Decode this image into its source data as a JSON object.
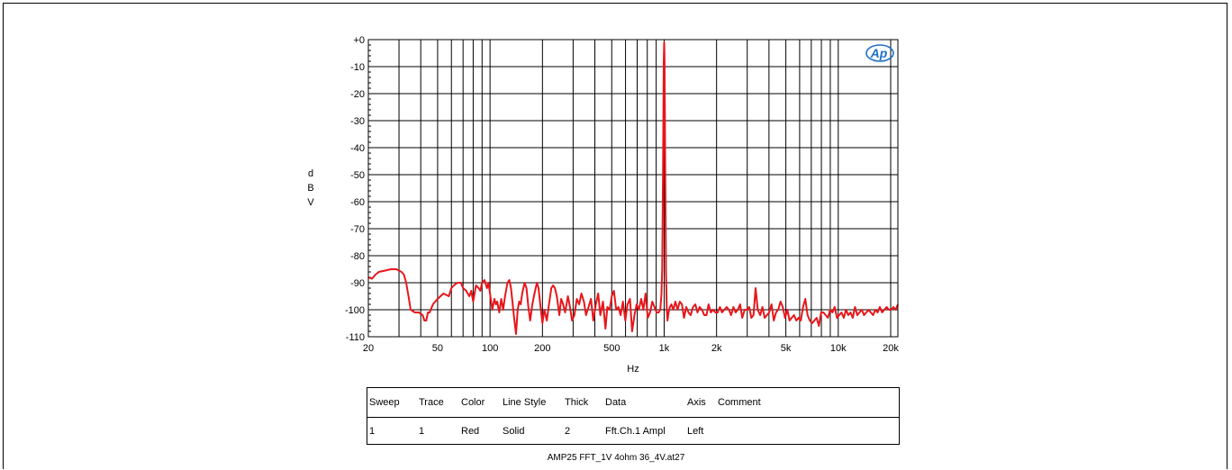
{
  "chart_data": {
    "type": "line",
    "ylabel": "dBV",
    "xlabel": "Hz",
    "x_scale": "log",
    "xlim": [
      20,
      22000
    ],
    "ylim": [
      -110,
      0
    ],
    "grid": true,
    "y_ticks": [
      "+0",
      "-10",
      "-20",
      "-30",
      "-40",
      "-50",
      "-60",
      "-70",
      "-80",
      "-90",
      "-100",
      "-110"
    ],
    "x_ticks": [
      {
        "value": 20,
        "label": "20"
      },
      {
        "value": 50,
        "label": "50"
      },
      {
        "value": 100,
        "label": "100"
      },
      {
        "value": 200,
        "label": "200"
      },
      {
        "value": 500,
        "label": "500"
      },
      {
        "value": 1000,
        "label": "1k"
      },
      {
        "value": 2000,
        "label": "2k"
      },
      {
        "value": 5000,
        "label": "5k"
      },
      {
        "value": 10000,
        "label": "10k"
      },
      {
        "value": 20000,
        "label": "20k"
      }
    ],
    "series": [
      {
        "color": "#e8161b",
        "points": [
          [
            20,
            -88
          ],
          [
            21,
            -88.5
          ],
          [
            22,
            -87
          ],
          [
            23,
            -86
          ],
          [
            25,
            -85.5
          ],
          [
            27,
            -85
          ],
          [
            29,
            -85
          ],
          [
            31,
            -86
          ],
          [
            32,
            -87
          ],
          [
            33,
            -90
          ],
          [
            34,
            -95
          ],
          [
            35,
            -100
          ],
          [
            37,
            -101
          ],
          [
            39,
            -101
          ],
          [
            41,
            -102
          ],
          [
            42,
            -104
          ],
          [
            43,
            -104
          ],
          [
            44,
            -101
          ],
          [
            45,
            -101
          ],
          [
            47,
            -98
          ],
          [
            50,
            -96
          ],
          [
            54,
            -94
          ],
          [
            58,
            -95
          ],
          [
            60,
            -92
          ],
          [
            62,
            -91
          ],
          [
            65,
            -90
          ],
          [
            68,
            -90
          ],
          [
            70,
            -92
          ],
          [
            73,
            -93
          ],
          [
            76,
            -95
          ],
          [
            78,
            -93
          ],
          [
            80,
            -97
          ],
          [
            83,
            -91
          ],
          [
            86,
            -92
          ],
          [
            88,
            -93
          ],
          [
            90,
            -90
          ],
          [
            93,
            -89
          ],
          [
            96,
            -92
          ],
          [
            98,
            -90
          ],
          [
            100,
            -94
          ],
          [
            103,
            -100
          ],
          [
            106,
            -96
          ],
          [
            108,
            -98
          ],
          [
            110,
            -97
          ],
          [
            113,
            -101
          ],
          [
            116,
            -96
          ],
          [
            119,
            -100
          ],
          [
            122,
            -95
          ],
          [
            126,
            -90
          ],
          [
            129,
            -89
          ],
          [
            132,
            -92
          ],
          [
            135,
            -98
          ],
          [
            138,
            -104
          ],
          [
            141,
            -109
          ],
          [
            144,
            -100
          ],
          [
            147,
            -97
          ],
          [
            150,
            -98
          ],
          [
            153,
            -94
          ],
          [
            158,
            -90
          ],
          [
            162,
            -92
          ],
          [
            166,
            -99
          ],
          [
            170,
            -104
          ],
          [
            175,
            -98
          ],
          [
            180,
            -94
          ],
          [
            186,
            -90
          ],
          [
            190,
            -92
          ],
          [
            195,
            -99
          ],
          [
            200,
            -105
          ],
          [
            205,
            -100
          ],
          [
            212,
            -104
          ],
          [
            218,
            -98
          ],
          [
            225,
            -92
          ],
          [
            230,
            -91
          ],
          [
            236,
            -92
          ],
          [
            242,
            -95
          ],
          [
            250,
            -102
          ],
          [
            256,
            -96
          ],
          [
            263,
            -98
          ],
          [
            270,
            -101
          ],
          [
            280,
            -95
          ],
          [
            288,
            -99
          ],
          [
            296,
            -104
          ],
          [
            305,
            -102
          ],
          [
            315,
            -96
          ],
          [
            325,
            -98
          ],
          [
            335,
            -94
          ],
          [
            346,
            -97
          ],
          [
            356,
            -102
          ],
          [
            368,
            -99
          ],
          [
            380,
            -96
          ],
          [
            392,
            -104
          ],
          [
            405,
            -98
          ],
          [
            418,
            -94
          ],
          [
            430,
            -102
          ],
          [
            445,
            -97
          ],
          [
            460,
            -107
          ],
          [
            472,
            -99
          ],
          [
            486,
            -100
          ],
          [
            500,
            -95
          ],
          [
            515,
            -93
          ],
          [
            530,
            -100
          ],
          [
            546,
            -99
          ],
          [
            562,
            -102
          ],
          [
            580,
            -97
          ],
          [
            598,
            -104
          ],
          [
            616,
            -98
          ],
          [
            636,
            -96
          ],
          [
            655,
            -108
          ],
          [
            675,
            -102
          ],
          [
            695,
            -98
          ],
          [
            716,
            -100
          ],
          [
            738,
            -96
          ],
          [
            760,
            -100
          ],
          [
            782,
            -94
          ],
          [
            805,
            -103
          ],
          [
            830,
            -101
          ],
          [
            855,
            -97
          ],
          [
            880,
            -99
          ],
          [
            905,
            -101
          ],
          [
            930,
            -101
          ],
          [
            950,
            -100
          ],
          [
            965,
            -94
          ],
          [
            975,
            -85
          ],
          [
            985,
            -50
          ],
          [
            995,
            -8
          ],
          [
            1000,
            -1
          ],
          [
            1005,
            -8
          ],
          [
            1015,
            -50
          ],
          [
            1025,
            -86
          ],
          [
            1035,
            -100
          ],
          [
            1045,
            -104
          ],
          [
            1060,
            -101
          ],
          [
            1080,
            -99
          ],
          [
            1100,
            -98
          ],
          [
            1130,
            -100
          ],
          [
            1160,
            -97
          ],
          [
            1195,
            -100
          ],
          [
            1230,
            -97
          ],
          [
            1265,
            -98
          ],
          [
            1300,
            -103
          ],
          [
            1340,
            -99
          ],
          [
            1380,
            -101
          ],
          [
            1420,
            -102
          ],
          [
            1465,
            -99
          ],
          [
            1510,
            -98
          ],
          [
            1555,
            -101
          ],
          [
            1600,
            -99
          ],
          [
            1650,
            -100
          ],
          [
            1700,
            -102
          ],
          [
            1750,
            -102
          ],
          [
            1800,
            -98
          ],
          [
            1855,
            -101
          ],
          [
            1910,
            -100
          ],
          [
            1970,
            -101
          ],
          [
            2030,
            -101
          ],
          [
            2090,
            -99
          ],
          [
            2150,
            -101
          ],
          [
            2215,
            -100
          ],
          [
            2285,
            -99
          ],
          [
            2355,
            -100
          ],
          [
            2425,
            -102
          ],
          [
            2500,
            -99
          ],
          [
            2575,
            -101
          ],
          [
            2650,
            -100
          ],
          [
            2730,
            -98
          ],
          [
            2810,
            -103
          ],
          [
            2900,
            -100
          ],
          [
            2990,
            -100
          ],
          [
            3080,
            -99
          ],
          [
            3170,
            -103
          ],
          [
            3260,
            -102
          ],
          [
            3350,
            -92
          ],
          [
            3450,
            -100
          ],
          [
            3560,
            -102
          ],
          [
            3670,
            -99
          ],
          [
            3780,
            -103
          ],
          [
            3895,
            -102
          ],
          [
            4010,
            -101
          ],
          [
            4135,
            -98
          ],
          [
            4260,
            -104
          ],
          [
            4390,
            -101
          ],
          [
            4520,
            -100
          ],
          [
            4660,
            -97
          ],
          [
            4800,
            -99
          ],
          [
            4945,
            -103
          ],
          [
            5100,
            -100
          ],
          [
            5250,
            -104
          ],
          [
            5405,
            -103
          ],
          [
            5570,
            -102
          ],
          [
            5740,
            -104
          ],
          [
            5915,
            -103
          ],
          [
            6095,
            -104
          ],
          [
            6280,
            -99
          ],
          [
            6470,
            -96
          ],
          [
            6665,
            -102
          ],
          [
            6870,
            -104
          ],
          [
            7075,
            -105
          ],
          [
            7290,
            -104
          ],
          [
            7510,
            -103
          ],
          [
            7740,
            -106
          ],
          [
            7975,
            -101
          ],
          [
            8215,
            -101
          ],
          [
            8465,
            -102
          ],
          [
            8720,
            -103
          ],
          [
            8985,
            -100
          ],
          [
            9260,
            -101
          ],
          [
            9540,
            -99
          ],
          [
            9830,
            -103
          ],
          [
            10130,
            -102
          ],
          [
            10435,
            -101
          ],
          [
            10750,
            -103
          ],
          [
            11080,
            -100
          ],
          [
            11415,
            -102
          ],
          [
            11760,
            -101
          ],
          [
            12115,
            -103
          ],
          [
            12485,
            -99
          ],
          [
            12860,
            -102
          ],
          [
            13250,
            -101
          ],
          [
            13650,
            -100
          ],
          [
            14065,
            -102
          ],
          [
            14490,
            -101
          ],
          [
            14930,
            -100
          ],
          [
            15380,
            -101
          ],
          [
            15850,
            -102
          ],
          [
            16330,
            -100
          ],
          [
            16825,
            -101
          ],
          [
            17335,
            -99
          ],
          [
            17860,
            -101
          ],
          [
            18400,
            -100
          ],
          [
            18960,
            -99
          ],
          [
            19535,
            -100
          ],
          [
            20125,
            -100
          ],
          [
            20735,
            -99
          ],
          [
            21365,
            -100
          ],
          [
            22000,
            -98
          ]
        ]
      }
    ]
  },
  "legend": {
    "headers": [
      "Sweep",
      "Trace",
      "Color",
      "Line Style",
      "Thick",
      "Data",
      "Axis",
      "Comment"
    ],
    "rows": [
      [
        "1",
        "1",
        "Red",
        "Solid",
        "2",
        "Fft.Ch.1 Ampl",
        "Left",
        ""
      ]
    ]
  },
  "footer": "AMP25 FFT_1V 4ohm 36_4V.at27",
  "logo_text": "Ap"
}
